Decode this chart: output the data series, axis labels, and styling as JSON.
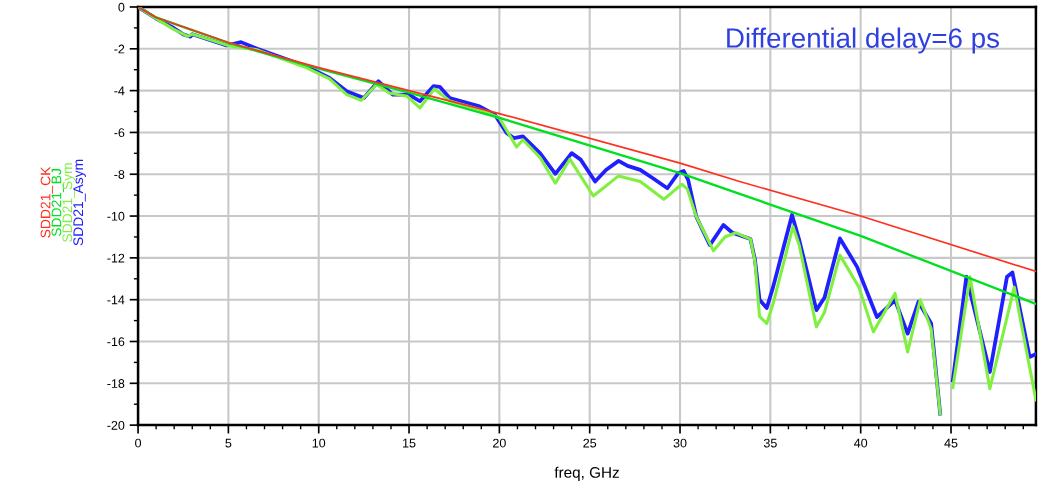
{
  "chart_data": {
    "type": "line",
    "xlabel": "freq, GHz",
    "annotations": [
      "Differential delay=6 ps"
    ],
    "xlim": [
      0,
      49.7
    ],
    "xticks": [
      0,
      5,
      10,
      15,
      20,
      25,
      30,
      35,
      40,
      45
    ],
    "ylim": [
      -20,
      0
    ],
    "yticks": [
      0,
      -2,
      -4,
      -6,
      -8,
      -10,
      -12,
      -14,
      -16,
      -18,
      -20
    ],
    "grid": true,
    "legend": "left",
    "marker": "none",
    "line_style": "solid",
    "series": [
      {
        "name": "SDD21_CK",
        "color": "#ff3020",
        "x": [
          0,
          1,
          5,
          10,
          20,
          30,
          33.3,
          40,
          49.7
        ],
        "values": [
          0,
          -0.5,
          -1.7,
          -2.9,
          -5.1,
          -7.47,
          -8.35,
          -10.0,
          -12.65
        ]
      },
      {
        "name": "SDD21_BJ",
        "color": "#00e020",
        "x": [
          0,
          1,
          5,
          10,
          15,
          20,
          30,
          33.3,
          40,
          49.7
        ],
        "values": [
          0,
          -0.5,
          -1.72,
          -2.95,
          -4.1,
          -5.3,
          -7.95,
          -8.94,
          -10.95,
          -14.2
        ]
      },
      {
        "name": "SDD21_Sym",
        "color": "#80f040",
        "x": [
          0,
          1,
          1.95,
          2.75,
          3.0,
          5.0,
          6.6,
          9.3,
          10.6,
          11.55,
          12.35,
          13.2,
          13.9,
          14.9,
          15.6,
          16.4,
          17.25,
          18.9,
          20.0,
          20.95,
          21.3,
          22.25,
          23.1,
          23.9,
          25.2,
          26.6,
          27.8,
          29.1,
          30.1,
          30.4,
          30.9,
          31.85,
          32.5,
          33.1,
          33.9,
          34.15,
          34.4,
          34.8,
          35.15,
          36.25,
          36.6,
          37.55,
          38.0,
          38.85,
          39.9,
          40.7,
          41.9,
          42.6,
          43.3,
          43.9,
          44.4,
          44.65,
          45.1,
          46.05,
          47.15,
          48.5,
          49.7
        ],
        "values": [
          0,
          -0.55,
          -1.06,
          -1.4,
          -1.3,
          -1.85,
          -2.05,
          -2.9,
          -3.44,
          -4.19,
          -4.47,
          -3.71,
          -4.11,
          -4.27,
          -4.83,
          -3.92,
          -4.5,
          -4.9,
          -5.31,
          -6.7,
          -6.35,
          -7.2,
          -8.43,
          -7.28,
          -9.04,
          -8.08,
          -8.35,
          -9.2,
          -8.48,
          -8.7,
          -10.03,
          -11.66,
          -10.99,
          -10.8,
          -11.1,
          -12.2,
          -14.8,
          -15.14,
          -14.2,
          -10.5,
          -11.4,
          -15.3,
          -14.6,
          -11.87,
          -13.4,
          -15.54,
          -13.7,
          -16.5,
          -14.0,
          -15.4,
          -19.45,
          null,
          -18.2,
          -12.9,
          -18.26,
          -13.4,
          -18.8
        ]
      },
      {
        "name": "SDD21_Asym",
        "color": "#2020ff",
        "x": [
          0,
          1,
          1.95,
          2.5,
          2.9,
          3.0,
          4.9,
          5.7,
          6.6,
          9.3,
          10.6,
          11.55,
          12.5,
          13.3,
          14.1,
          15.0,
          15.6,
          16.35,
          16.7,
          17.25,
          18.9,
          19.75,
          20.4,
          20.8,
          21.3,
          22.25,
          23.1,
          24.0,
          24.5,
          25.3,
          25.9,
          26.6,
          27.1,
          27.8,
          28.5,
          29.3,
          29.9,
          30.2,
          30.45,
          30.9,
          31.65,
          32.4,
          32.9,
          33.9,
          34.15,
          34.4,
          34.8,
          35.15,
          36.2,
          36.6,
          37.55,
          38.0,
          38.85,
          39.8,
          40.9,
          41.9,
          42.6,
          43.2,
          43.9,
          44.4,
          44.65,
          45.1,
          45.85,
          47.15,
          48.1,
          48.4,
          49.35,
          49.7
        ],
        "values": [
          0,
          -0.55,
          -0.99,
          -1.31,
          -1.42,
          -1.3,
          -1.84,
          -1.68,
          -2.0,
          -2.83,
          -3.39,
          -4.03,
          -4.35,
          -3.55,
          -4.19,
          -4.19,
          -4.51,
          -3.79,
          -3.82,
          -4.35,
          -4.75,
          -5.15,
          -6.03,
          -6.27,
          -6.19,
          -6.99,
          -7.98,
          -6.99,
          -7.3,
          -8.35,
          -7.8,
          -7.36,
          -7.6,
          -7.79,
          -8.19,
          -8.67,
          -7.95,
          -7.84,
          -8.27,
          -10.03,
          -11.39,
          -10.43,
          -10.8,
          -11.1,
          -12.1,
          -14.0,
          -14.4,
          -13.4,
          -9.95,
          -11.15,
          -14.5,
          -13.9,
          -11.07,
          -12.43,
          -14.83,
          -14.02,
          -15.62,
          -14.1,
          -15.14,
          -19.45,
          null,
          -17.86,
          -12.9,
          -17.46,
          -12.9,
          -12.7,
          -16.74,
          -16.6
        ]
      }
    ]
  }
}
